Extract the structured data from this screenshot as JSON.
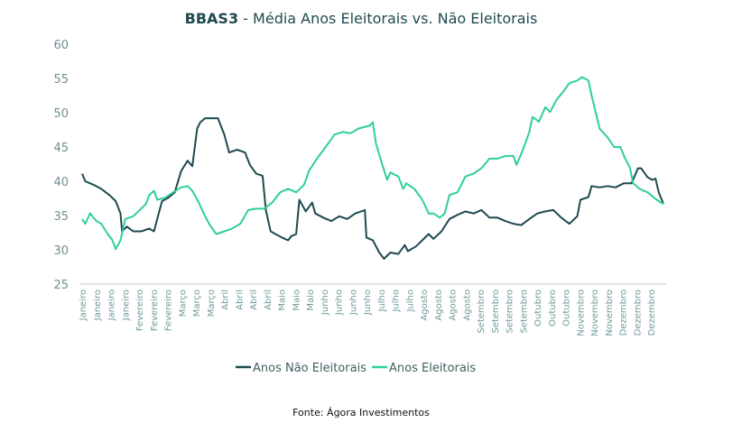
{
  "chart_data": {
    "type": "line",
    "title_bold": "BBAS3",
    "title_rest": " - Média Anos Eleitorais vs. Não Eleitorais",
    "xlabel": "",
    "ylabel": "",
    "ylim": [
      25,
      60
    ],
    "yticks": [
      25,
      30,
      35,
      40,
      45,
      50,
      55,
      60
    ],
    "xlim": [
      0,
      364
    ],
    "x_unit": "day of year (approx.)",
    "xtick_labels": [
      "Janeiro",
      "Janeiro",
      "Janeiro",
      "Janeiro",
      "Fevereiro",
      "Fevereiro",
      "Fevereiro",
      "Março",
      "Março",
      "Março",
      "Abril",
      "Abril",
      "Abril",
      "Abril",
      "Maio",
      "Maio",
      "Maio",
      "Junho",
      "Junho",
      "Junho",
      "Junho",
      "Julho",
      "Julho",
      "Julho",
      "Agosto",
      "Agosto",
      "Agosto",
      "Agosto",
      "Setembro",
      "Setembro",
      "Setembro",
      "Setembro",
      "Outubro",
      "Outubro",
      "Outubro",
      "Novembro",
      "Novembro",
      "Novembro",
      "Dezembro",
      "Dezembro",
      "Dezembro"
    ],
    "grid": "baseline only",
    "legend_position": "bottom-center",
    "series": [
      {
        "name": "Anos Não Eleitorais",
        "color": "#1d4a4f",
        "points": [
          [
            0,
            41.1
          ],
          [
            2,
            40.0
          ],
          [
            7,
            39.5
          ],
          [
            12,
            38.9
          ],
          [
            17,
            38.0
          ],
          [
            21,
            37.1
          ],
          [
            24,
            35.3
          ],
          [
            25,
            32.7
          ],
          [
            28,
            33.4
          ],
          [
            32,
            32.7
          ],
          [
            37,
            32.7
          ],
          [
            42,
            33.1
          ],
          [
            45,
            32.7
          ],
          [
            47,
            34.5
          ],
          [
            50,
            37.1
          ],
          [
            54,
            37.6
          ],
          [
            58,
            38.4
          ],
          [
            62,
            41.5
          ],
          [
            66,
            43.0
          ],
          [
            69,
            42.2
          ],
          [
            72,
            47.7
          ],
          [
            74,
            48.6
          ],
          [
            77,
            49.2
          ],
          [
            82,
            49.2
          ],
          [
            85,
            49.2
          ],
          [
            89,
            46.8
          ],
          [
            92,
            44.2
          ],
          [
            97,
            44.6
          ],
          [
            102,
            44.2
          ],
          [
            105,
            42.4
          ],
          [
            109,
            41.1
          ],
          [
            113,
            40.8
          ],
          [
            115,
            35.8
          ],
          [
            118,
            32.7
          ],
          [
            121,
            32.3
          ],
          [
            125,
            31.8
          ],
          [
            129,
            31.4
          ],
          [
            131,
            32.0
          ],
          [
            134,
            32.3
          ],
          [
            136,
            37.3
          ],
          [
            140,
            35.6
          ],
          [
            144,
            36.9
          ],
          [
            146,
            35.3
          ],
          [
            151,
            34.7
          ],
          [
            156,
            34.2
          ],
          [
            161,
            34.9
          ],
          [
            166,
            34.5
          ],
          [
            171,
            35.3
          ],
          [
            177,
            35.8
          ],
          [
            178,
            31.8
          ],
          [
            182,
            31.4
          ],
          [
            186,
            29.6
          ],
          [
            189,
            28.7
          ],
          [
            193,
            29.6
          ],
          [
            198,
            29.4
          ],
          [
            202,
            30.7
          ],
          [
            204,
            29.8
          ],
          [
            209,
            30.5
          ],
          [
            213,
            31.4
          ],
          [
            217,
            32.3
          ],
          [
            220,
            31.6
          ],
          [
            225,
            32.7
          ],
          [
            230,
            34.5
          ],
          [
            235,
            35.1
          ],
          [
            240,
            35.6
          ],
          [
            245,
            35.3
          ],
          [
            250,
            35.8
          ],
          [
            255,
            34.7
          ],
          [
            260,
            34.7
          ],
          [
            265,
            34.2
          ],
          [
            270,
            33.8
          ],
          [
            275,
            33.6
          ],
          [
            280,
            34.5
          ],
          [
            285,
            35.3
          ],
          [
            290,
            35.6
          ],
          [
            295,
            35.8
          ],
          [
            300,
            34.7
          ],
          [
            305,
            33.8
          ],
          [
            310,
            34.9
          ],
          [
            312,
            37.3
          ],
          [
            317,
            37.7
          ],
          [
            319,
            39.3
          ],
          [
            324,
            39.1
          ],
          [
            329,
            39.3
          ],
          [
            334,
            39.1
          ],
          [
            339,
            39.7
          ],
          [
            344,
            39.7
          ],
          [
            348,
            41.9
          ],
          [
            350,
            41.9
          ],
          [
            354,
            40.6
          ],
          [
            357,
            40.2
          ],
          [
            359,
            40.4
          ],
          [
            361,
            38.4
          ],
          [
            364,
            36.7
          ]
        ]
      },
      {
        "name": "Anos Eleitorais",
        "color": "#2ecf9a",
        "points": [
          [
            0,
            34.5
          ],
          [
            2,
            33.8
          ],
          [
            5,
            35.3
          ],
          [
            9,
            34.2
          ],
          [
            12,
            33.8
          ],
          [
            16,
            32.3
          ],
          [
            19,
            31.4
          ],
          [
            21,
            30.1
          ],
          [
            24,
            31.4
          ],
          [
            27,
            34.5
          ],
          [
            32,
            34.9
          ],
          [
            36,
            35.8
          ],
          [
            40,
            36.7
          ],
          [
            42,
            38.0
          ],
          [
            45,
            38.6
          ],
          [
            47,
            37.3
          ],
          [
            52,
            37.6
          ],
          [
            57,
            38.4
          ],
          [
            62,
            39.1
          ],
          [
            66,
            39.3
          ],
          [
            69,
            38.6
          ],
          [
            73,
            36.9
          ],
          [
            77,
            34.9
          ],
          [
            80,
            33.6
          ],
          [
            84,
            32.3
          ],
          [
            89,
            32.7
          ],
          [
            94,
            33.1
          ],
          [
            99,
            33.8
          ],
          [
            104,
            35.8
          ],
          [
            109,
            36.0
          ],
          [
            114,
            36.0
          ],
          [
            119,
            36.9
          ],
          [
            124,
            38.4
          ],
          [
            129,
            38.9
          ],
          [
            134,
            38.4
          ],
          [
            139,
            39.5
          ],
          [
            142,
            41.5
          ],
          [
            147,
            43.3
          ],
          [
            154,
            45.5
          ],
          [
            158,
            46.8
          ],
          [
            163,
            47.2
          ],
          [
            168,
            47.0
          ],
          [
            173,
            47.7
          ],
          [
            180,
            48.1
          ],
          [
            182,
            48.6
          ],
          [
            184,
            45.5
          ],
          [
            188,
            42.4
          ],
          [
            191,
            40.2
          ],
          [
            193,
            41.3
          ],
          [
            198,
            40.7
          ],
          [
            201,
            38.9
          ],
          [
            203,
            39.7
          ],
          [
            208,
            38.9
          ],
          [
            213,
            37.3
          ],
          [
            217,
            35.3
          ],
          [
            220,
            35.3
          ],
          [
            224,
            34.7
          ],
          [
            227,
            35.3
          ],
          [
            230,
            38.0
          ],
          [
            235,
            38.4
          ],
          [
            240,
            40.7
          ],
          [
            245,
            41.1
          ],
          [
            250,
            41.9
          ],
          [
            255,
            43.3
          ],
          [
            260,
            43.3
          ],
          [
            265,
            43.7
          ],
          [
            270,
            43.7
          ],
          [
            272,
            42.4
          ],
          [
            276,
            44.6
          ],
          [
            280,
            47.2
          ],
          [
            282,
            49.4
          ],
          [
            286,
            48.7
          ],
          [
            290,
            50.8
          ],
          [
            293,
            50.1
          ],
          [
            297,
            51.9
          ],
          [
            301,
            53.0
          ],
          [
            305,
            54.3
          ],
          [
            310,
            54.7
          ],
          [
            313,
            55.2
          ],
          [
            317,
            54.7
          ],
          [
            319,
            52.5
          ],
          [
            324,
            47.7
          ],
          [
            329,
            46.4
          ],
          [
            333,
            45.0
          ],
          [
            337,
            45.0
          ],
          [
            340,
            43.3
          ],
          [
            343,
            42.0
          ],
          [
            345,
            39.7
          ],
          [
            349,
            38.9
          ],
          [
            354,
            38.4
          ],
          [
            358,
            37.6
          ],
          [
            361,
            37.1
          ],
          [
            364,
            36.7
          ]
        ]
      }
    ]
  },
  "source": "Fonte: Ágora Investimentos"
}
